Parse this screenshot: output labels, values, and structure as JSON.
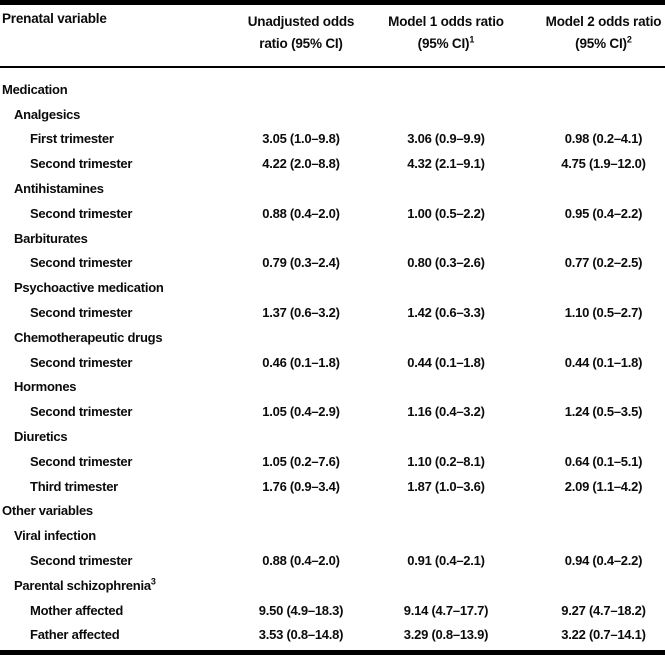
{
  "table": {
    "header": {
      "col1": "Prenatal variable",
      "col2_line1": "Unadjusted odds",
      "col2_line2": "ratio (95% CI)",
      "col3_line1": "Model 1 odds ratio",
      "col3_line2": "(95% CI)",
      "col3_sup": "1",
      "col4_line1": "Model 2 odds ratio",
      "col4_line2": "(95% CI)",
      "col4_sup": "2"
    },
    "rows": [
      {
        "label": "Medication",
        "indent": 0,
        "values": []
      },
      {
        "label": "Analgesics",
        "indent": 1,
        "values": []
      },
      {
        "label": "First trimester",
        "indent": 2,
        "values": [
          "3.05 (1.0–9.8)",
          "3.06 (0.9–9.9)",
          "0.98 (0.2–4.1)"
        ]
      },
      {
        "label": "Second trimester",
        "indent": 2,
        "values": [
          "4.22 (2.0–8.8)",
          "4.32 (2.1–9.1)",
          "4.75 (1.9–12.0)"
        ]
      },
      {
        "label": "Antihistamines",
        "indent": 1,
        "values": []
      },
      {
        "label": "Second trimester",
        "indent": 2,
        "values": [
          "0.88 (0.4–2.0)",
          "1.00 (0.5–2.2)",
          "0.95 (0.4–2.2)"
        ]
      },
      {
        "label": "Barbiturates",
        "indent": 1,
        "values": []
      },
      {
        "label": "Second trimester",
        "indent": 2,
        "values": [
          "0.79 (0.3–2.4)",
          "0.80 (0.3–2.6)",
          "0.77 (0.2–2.5)"
        ]
      },
      {
        "label": "Psychoactive medication",
        "indent": 1,
        "values": []
      },
      {
        "label": "Second trimester",
        "indent": 2,
        "values": [
          "1.37 (0.6–3.2)",
          "1.42 (0.6–3.3)",
          "1.10 (0.5–2.7)"
        ]
      },
      {
        "label": "Chemotherapeutic drugs",
        "indent": 1,
        "values": []
      },
      {
        "label": "Second trimester",
        "indent": 2,
        "values": [
          "0.46 (0.1–1.8)",
          "0.44 (0.1–1.8)",
          "0.44 (0.1–1.8)"
        ]
      },
      {
        "label": "Hormones",
        "indent": 1,
        "values": []
      },
      {
        "label": "Second trimester",
        "indent": 2,
        "values": [
          "1.05 (0.4–2.9)",
          "1.16 (0.4–3.2)",
          "1.24 (0.5–3.5)"
        ]
      },
      {
        "label": "Diuretics",
        "indent": 1,
        "values": []
      },
      {
        "label": "Second trimester",
        "indent": 2,
        "values": [
          "1.05 (0.2–7.6)",
          "1.10 (0.2–8.1)",
          "0.64 (0.1–5.1)"
        ]
      },
      {
        "label": "Third trimester",
        "indent": 2,
        "values": [
          "1.76 (0.9–3.4)",
          "1.87 (1.0–3.6)",
          "2.09 (1.1–4.2)"
        ]
      },
      {
        "label": "Other variables",
        "indent": 0,
        "values": []
      },
      {
        "label": "Viral infection",
        "indent": 1,
        "values": []
      },
      {
        "label": "Second trimester",
        "indent": 2,
        "values": [
          "0.88 (0.4–2.0)",
          "0.91 (0.4–2.1)",
          "0.94 (0.4–2.2)"
        ]
      },
      {
        "label": "Parental schizophrenia",
        "sup": "3",
        "indent": 1,
        "values": []
      },
      {
        "label": "Mother affected",
        "indent": 2,
        "values": [
          "9.50 (4.9–18.3)",
          "9.14 (4.7–17.7)",
          "9.27 (4.7–18.2)"
        ]
      },
      {
        "label": "Father affected",
        "indent": 2,
        "values": [
          "3.53 (0.8–14.8)",
          "3.29 (0.8–13.9)",
          "3.22 (0.7–14.1)"
        ]
      }
    ],
    "colors": {
      "text": "#0b0b0b",
      "rule": "#000000",
      "background": "#ffffff"
    }
  }
}
